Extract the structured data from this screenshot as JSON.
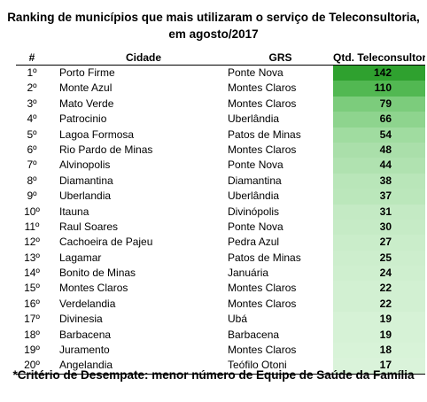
{
  "title_line1": "Ranking de municípios que mais utilizaram o serviço de Teleconsultoria,",
  "title_line2": "em agosto/2017",
  "headers": {
    "num": "#",
    "city": "Cidade",
    "grs": "GRS",
    "qtd": "Qtd. Teleconsultori"
  },
  "rows": [
    {
      "num": "1º",
      "city": "Porto Firme",
      "grs": "Ponte Nova",
      "qtd": "142",
      "color": "#2fa12f"
    },
    {
      "num": "2º",
      "city": "Monte Azul",
      "grs": "Montes Claros",
      "qtd": "110",
      "color": "#52b852"
    },
    {
      "num": "3º",
      "city": "Mato Verde",
      "grs": "Montes Claros",
      "qtd": "79",
      "color": "#7ccc7c"
    },
    {
      "num": "4º",
      "city": "Patrocinio",
      "grs": "Uberlândia",
      "qtd": "66",
      "color": "#8ed48e"
    },
    {
      "num": "5º",
      "city": "Lagoa Formosa",
      "grs": "Patos de Minas",
      "qtd": "54",
      "color": "#a0dca0"
    },
    {
      "num": "6º",
      "city": "Rio Pardo de Minas",
      "grs": "Montes Claros",
      "qtd": "48",
      "color": "#aadfaa"
    },
    {
      "num": "7º",
      "city": "Alvinopolis",
      "grs": "Ponte Nova",
      "qtd": "44",
      "color": "#b0e2b0"
    },
    {
      "num": "8º",
      "city": "Diamantina",
      "grs": "Diamantina",
      "qtd": "38",
      "color": "#b9e6b9"
    },
    {
      "num": "9º",
      "city": "Uberlandia",
      "grs": "Uberlândia",
      "qtd": "37",
      "color": "#bbe7bb"
    },
    {
      "num": "10º",
      "city": "Itauna",
      "grs": "Divinópolis",
      "qtd": "31",
      "color": "#c4eac4"
    },
    {
      "num": "11º",
      "city": "Raul Soares",
      "grs": "Ponte Nova",
      "qtd": "30",
      "color": "#c6ebc6"
    },
    {
      "num": "12º",
      "city": "Cachoeira de Pajeu",
      "grs": "Pedra Azul",
      "qtd": "27",
      "color": "#caedca"
    },
    {
      "num": "13º",
      "city": "Lagamar",
      "grs": "Patos de Minas",
      "qtd": "25",
      "color": "#cdeecd"
    },
    {
      "num": "14º",
      "city": "Bonito de Minas",
      "grs": "Januária",
      "qtd": "24",
      "color": "#cfefcf"
    },
    {
      "num": "15º",
      "city": "Montes Claros",
      "grs": "Montes Claros",
      "qtd": "22",
      "color": "#d2f0d2"
    },
    {
      "num": "16º",
      "city": "Verdelandia",
      "grs": "Montes Claros",
      "qtd": "22",
      "color": "#d2f0d2"
    },
    {
      "num": "17º",
      "city": "Divinesia",
      "grs": "Ubá",
      "qtd": "19",
      "color": "#d6f2d6"
    },
    {
      "num": "18º",
      "city": "Barbacena",
      "grs": "Barbacena",
      "qtd": "19",
      "color": "#d6f2d6"
    },
    {
      "num": "19º",
      "city": "Juramento",
      "grs": "Montes Claros",
      "qtd": "18",
      "color": "#d8f3d8"
    },
    {
      "num": "20º",
      "city": "Angelandia",
      "grs": "Teófilo Otoni",
      "qtd": "17",
      "color": "#daf3da"
    }
  ],
  "footer": "*Critério de Desempate: menor número de Equipe de Saúde da Família"
}
